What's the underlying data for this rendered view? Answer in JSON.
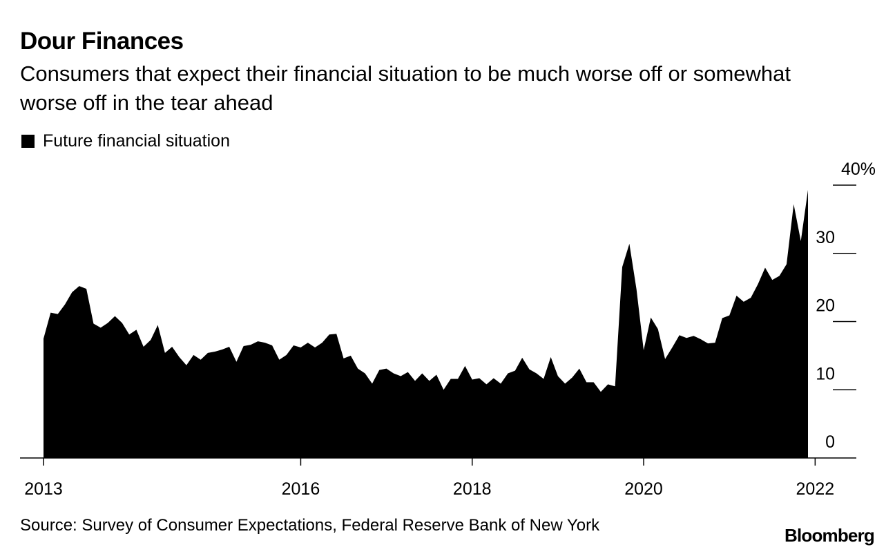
{
  "chart_data": {
    "type": "area",
    "title": "Dour Finances",
    "subtitle": "Consumers that expect their financial situation to be much worse off or somewhat worse off in the tear ahead",
    "legend": [
      {
        "name": "Future financial situation",
        "color": "#000000"
      }
    ],
    "series": [
      {
        "name": "Future financial situation",
        "start": "2013-06",
        "frequency": "monthly",
        "unit": "%",
        "values": [
          17.5,
          21.3,
          21.1,
          22.5,
          24.3,
          25.2,
          24.8,
          19.7,
          19.1,
          19.8,
          20.8,
          19.8,
          18.1,
          18.8,
          16.3,
          17.3,
          19.5,
          15.4,
          16.3,
          14.8,
          13.6,
          15.1,
          14.4,
          15.4,
          15.6,
          15.9,
          16.3,
          14.1,
          16.4,
          16.6,
          17.1,
          16.9,
          16.5,
          14.4,
          15.1,
          16.5,
          16.2,
          16.9,
          16.2,
          16.9,
          18.1,
          18.2,
          14.6,
          15.0,
          13.1,
          12.4,
          10.9,
          12.9,
          13.1,
          12.4,
          12.0,
          12.6,
          11.3,
          12.4,
          11.3,
          12.2,
          10.0,
          11.6,
          11.6,
          13.5,
          11.5,
          11.7,
          10.8,
          11.7,
          10.9,
          12.4,
          12.8,
          14.7,
          13.0,
          12.4,
          11.6,
          14.8,
          12.0,
          10.9,
          11.8,
          13.1,
          11.1,
          11.1,
          9.7,
          10.8,
          10.5,
          28.0,
          31.4,
          24.7,
          15.8,
          20.6,
          18.9,
          14.5,
          16.2,
          18.0,
          17.6,
          17.9,
          17.4,
          16.8,
          16.9,
          20.5,
          20.9,
          23.8,
          22.9,
          23.5,
          25.5,
          27.9,
          26.1,
          26.7,
          28.4,
          37.2,
          31.8,
          39.3
        ]
      }
    ],
    "x_ticks": [
      "2013",
      "2016",
      "2018",
      "2020",
      "2022"
    ],
    "x_tick_values": [
      "2013-06",
      "2016-06",
      "2018-06",
      "2020-06",
      "2022-06"
    ],
    "y_ticks": [
      0,
      10,
      20,
      30,
      40
    ],
    "y_tick_labels": [
      "0",
      "10",
      "20",
      "30",
      "40%"
    ],
    "ylim": [
      0,
      40
    ],
    "xlabel": "",
    "ylabel": ""
  },
  "source": "Source: Survey of Consumer Expectations, Federal Reserve Bank of New York",
  "brand": "Bloomberg"
}
